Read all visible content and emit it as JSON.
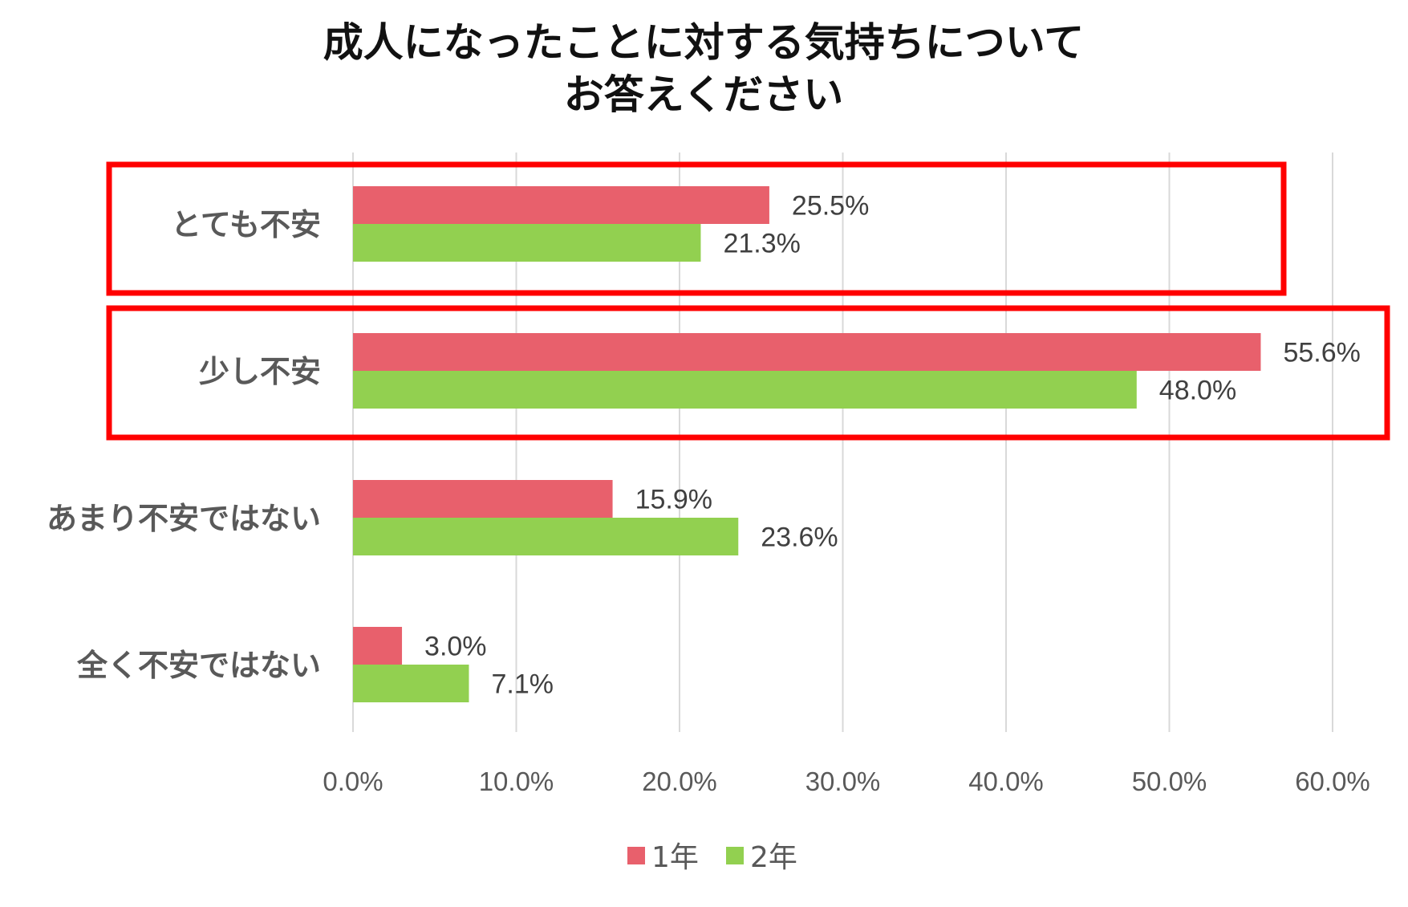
{
  "chart_data": {
    "type": "bar",
    "orientation": "horizontal",
    "title_lines": [
      "成人になったことに対する気持ちについて",
      "お答えください"
    ],
    "categories": [
      "とても不安",
      "少し不安",
      "あまり不安ではない",
      "全く不安ではない"
    ],
    "series": [
      {
        "name": "1年",
        "color": "#E8606C",
        "values": [
          25.5,
          55.6,
          15.9,
          3.0
        ]
      },
      {
        "name": "2年",
        "color": "#92D050",
        "values": [
          21.3,
          48.0,
          23.6,
          7.1
        ]
      }
    ],
    "data_labels": [
      [
        "25.5%",
        "55.6%",
        "15.9%",
        "3.0%"
      ],
      [
        "21.3%",
        "48.0%",
        "23.6%",
        "7.1%"
      ]
    ],
    "xlim": [
      0,
      60
    ],
    "x_ticks": [
      "0.0%",
      "10.0%",
      "20.0%",
      "30.0%",
      "40.0%",
      "50.0%",
      "60.0%"
    ],
    "grid": true,
    "legend_position": "bottom",
    "highlighted_categories": [
      "とても不安",
      "少し不安"
    ],
    "highlight_color": "#FF0000",
    "gridline_color": "#D9D9D9"
  }
}
